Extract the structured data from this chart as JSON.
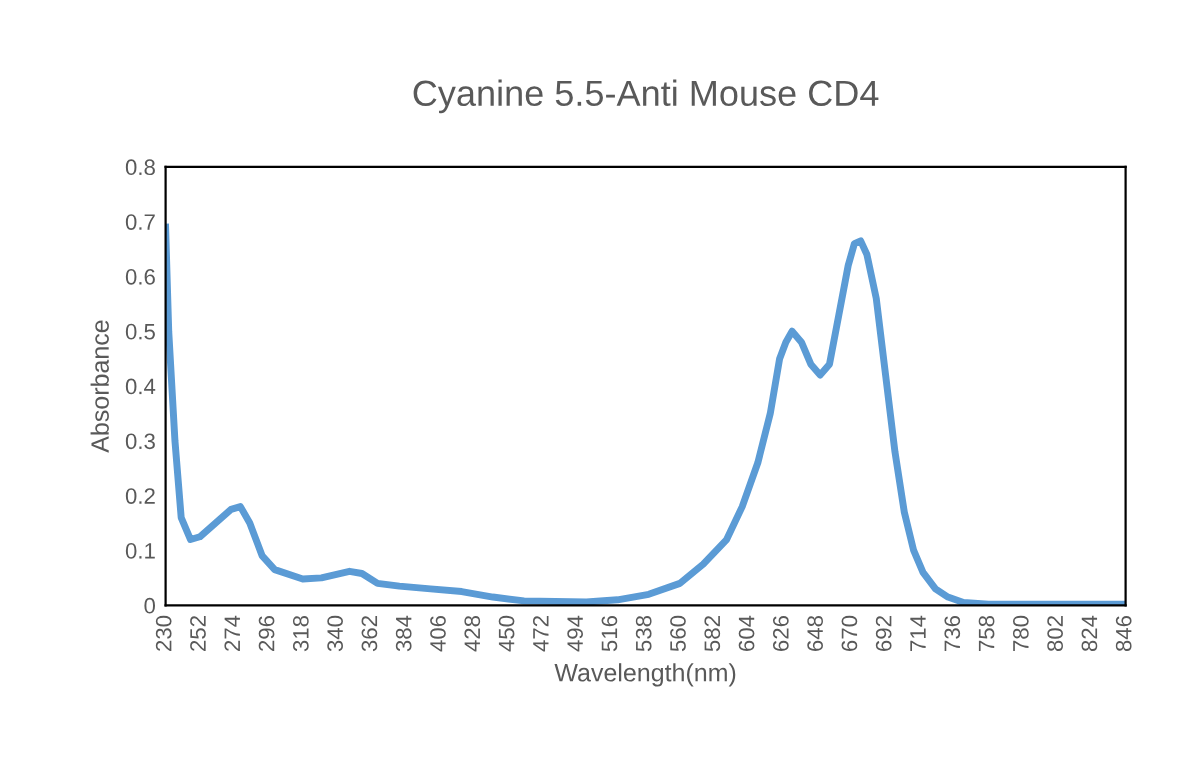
{
  "chart_data": {
    "type": "line",
    "title": "Cyanine 5.5-Anti Mouse CD4",
    "xlabel": "Wavelength(nm)",
    "ylabel": "Absorbance",
    "series": [
      {
        "color": "#5b9bd5",
        "x": [
          230,
          232,
          236,
          240,
          246,
          252,
          262,
          272,
          278,
          284,
          292,
          300,
          318,
          330,
          348,
          356,
          366,
          380,
          400,
          420,
          440,
          460,
          500,
          520,
          540,
          560,
          575,
          590,
          600,
          610,
          618,
          624,
          628,
          632,
          638,
          644,
          650,
          656,
          662,
          668,
          672,
          676,
          680,
          686,
          692,
          698,
          704,
          710,
          716,
          724,
          732,
          742,
          758,
          846
        ],
        "values": [
          0.69,
          0.5,
          0.3,
          0.16,
          0.12,
          0.125,
          0.15,
          0.175,
          0.18,
          0.15,
          0.09,
          0.065,
          0.048,
          0.05,
          0.062,
          0.058,
          0.04,
          0.035,
          0.03,
          0.025,
          0.015,
          0.008,
          0.006,
          0.01,
          0.02,
          0.04,
          0.075,
          0.12,
          0.18,
          0.26,
          0.35,
          0.45,
          0.48,
          0.5,
          0.48,
          0.44,
          0.42,
          0.44,
          0.53,
          0.62,
          0.66,
          0.665,
          0.64,
          0.56,
          0.42,
          0.28,
          0.17,
          0.1,
          0.06,
          0.03,
          0.015,
          0.005,
          0.002,
          0.002
        ]
      }
    ],
    "xlim": [
      230,
      846
    ],
    "xticks": [
      230,
      252,
      274,
      296,
      318,
      340,
      362,
      384,
      406,
      428,
      450,
      472,
      494,
      516,
      538,
      560,
      582,
      604,
      626,
      648,
      670,
      692,
      714,
      736,
      758,
      780,
      802,
      824,
      846
    ],
    "ylim": [
      0,
      0.8
    ],
    "yticks": [
      0,
      0.1,
      0.2,
      0.3,
      0.4,
      0.5,
      0.6,
      0.7,
      0.8
    ],
    "grid": false,
    "marker": "none",
    "line_style": "solid"
  }
}
